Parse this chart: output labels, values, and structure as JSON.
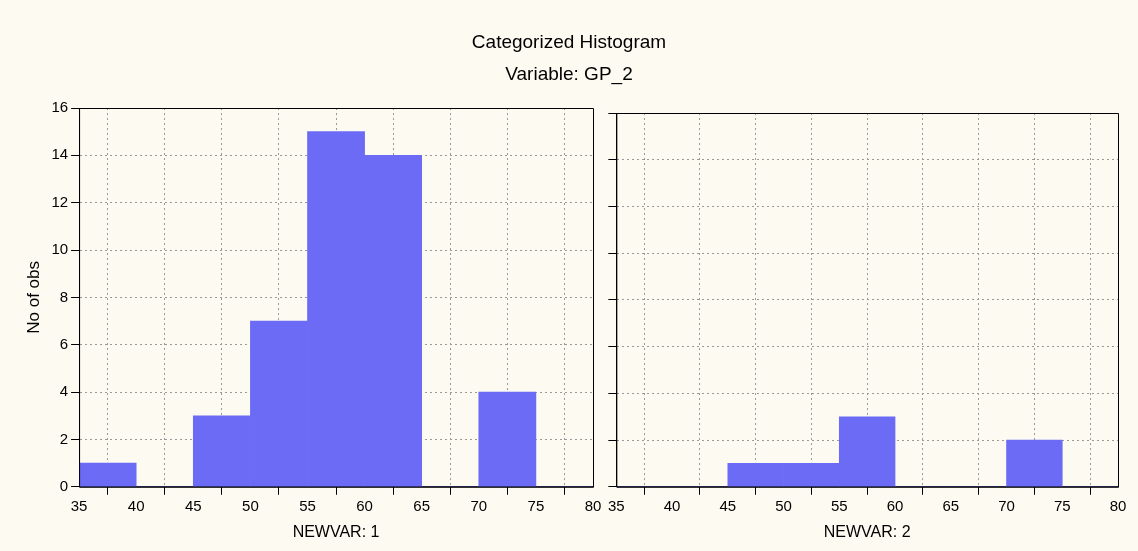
{
  "chart_data": [
    {
      "type": "histogram",
      "title": "Categorized Histogram",
      "subtitle": "Variable: GP_2",
      "xlabel": "NEWVAR: 1",
      "ylabel": "No of obs",
      "bins": [
        35,
        40,
        45,
        50,
        55,
        60,
        65,
        70,
        75,
        80
      ],
      "values": [
        1,
        0,
        3,
        7,
        15,
        14,
        0,
        4,
        0
      ],
      "color": "#6b6bf5",
      "xlim": [
        35,
        80
      ],
      "xticks": [
        35,
        40,
        45,
        50,
        55,
        60,
        65,
        70,
        75,
        80
      ],
      "ylim": [
        0,
        16
      ],
      "yticks": [
        0,
        2,
        4,
        6,
        8,
        10,
        12,
        14,
        16
      ],
      "grid": true
    },
    {
      "type": "histogram",
      "xlabel": "NEWVAR: 2",
      "bins": [
        35,
        40,
        45,
        50,
        55,
        60,
        65,
        70,
        75,
        80
      ],
      "values": [
        0,
        0,
        1,
        1,
        3,
        0,
        0,
        2,
        0
      ],
      "color": "#6b6bf5",
      "xlim": [
        35,
        80
      ],
      "xticks": [
        35,
        40,
        45,
        50,
        55,
        60,
        65,
        70,
        75,
        80
      ],
      "ylim": [
        0,
        16
      ],
      "yticks": [
        0,
        2,
        4,
        6,
        8,
        10,
        12,
        14,
        16
      ],
      "grid": true,
      "tick_labels": "x"
    }
  ]
}
